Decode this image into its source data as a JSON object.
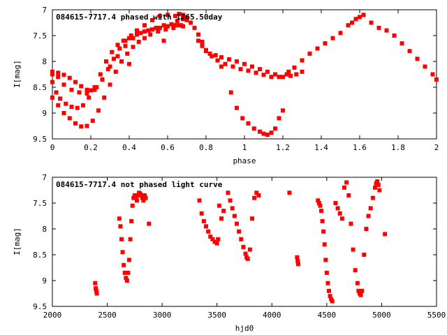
{
  "colors": {
    "points": "#ff0000",
    "frame": "#000000",
    "background": "#ffffff"
  },
  "chart_data": [
    {
      "type": "scatter",
      "title": "084615-7717.4 phased with 1265.50day",
      "xlabel": "phase",
      "ylabel": "I[mag]",
      "xlim": [
        0,
        2
      ],
      "ylim": [
        7,
        9.5
      ],
      "y_inverted": true,
      "legend": "none",
      "grid": false,
      "x_ticks": [
        "0",
        "0.2",
        "0.4",
        "0.6",
        "0.8",
        "1",
        "1.2",
        "1.4",
        "1.6",
        "1.8",
        "2"
      ],
      "y_ticks": [
        "7",
        "7.5",
        "8",
        "8.5",
        "9",
        "9.5"
      ],
      "series": [
        {
          "color": "#ff0000",
          "x": [
            0.0,
            0.03,
            0.06,
            0.09,
            0.12,
            0.15,
            0.18,
            0.2,
            0.23,
            0.26,
            0.29,
            0.32,
            0.35,
            0.38,
            0.41,
            0.44,
            0.48,
            0.52,
            0.56,
            0.6,
            0.64,
            0.66,
            0.68,
            0.7,
            0.72,
            0.74,
            0.76,
            0.78,
            0.8,
            0.83,
            0.86,
            0.9,
            0.94,
            0.98,
            1.02,
            1.06,
            1.1,
            1.14,
            1.18,
            1.22,
            1.26,
            1.3,
            1.34,
            1.38,
            1.42,
            1.46,
            1.5,
            1.54,
            1.58,
            1.62,
            1.66,
            1.7,
            1.74,
            1.78,
            1.82,
            1.86,
            1.9,
            1.94,
            1.98,
            2.0,
            0.0,
            0.03,
            0.06,
            0.1,
            0.14,
            0.18,
            0.22,
            0.26,
            0.3,
            0.34,
            0.38,
            0.42,
            0.46,
            0.5,
            0.54,
            0.58,
            0.62,
            0.65,
            0.68,
            0.7,
            0.0,
            0.02,
            0.04,
            0.07,
            0.1,
            0.13,
            0.16,
            0.19,
            0.22,
            0.25,
            0.28,
            0.31,
            0.34,
            0.37,
            0.4,
            0.44,
            0.48,
            0.52,
            0.56,
            0.6,
            0.64,
            0.67,
            0.0,
            0.03,
            0.06,
            0.09,
            0.12,
            0.15,
            0.18,
            0.21,
            0.24,
            0.27,
            0.3,
            0.33,
            0.36,
            0.39,
            0.42,
            0.45,
            0.48,
            0.51,
            0.55,
            0.59,
            0.63,
            0.66,
            0.68,
            0.76,
            0.78,
            0.8,
            0.82,
            0.85,
            0.88,
            0.92,
            0.96,
            1.0,
            1.04,
            1.08,
            1.12,
            1.16,
            1.2,
            1.24,
            1.27,
            1.3,
            0.93,
            0.96,
            0.99,
            1.02,
            1.05,
            1.08,
            1.1,
            1.12,
            1.14,
            1.16,
            1.18,
            1.2,
            1.56,
            1.58,
            1.6,
            1.62,
            0.4,
            0.88,
            0.58,
            1.23
          ],
          "y": [
            8.2,
            8.22,
            8.26,
            8.32,
            8.4,
            8.48,
            8.55,
            8.56,
            8.5,
            8.35,
            8.15,
            7.95,
            7.75,
            7.6,
            7.5,
            7.4,
            7.3,
            7.2,
            7.12,
            7.1,
            7.12,
            7.08,
            7.1,
            7.15,
            7.25,
            7.35,
            7.48,
            7.62,
            7.78,
            7.9,
            7.98,
            8.05,
            8.1,
            8.15,
            8.18,
            8.22,
            8.26,
            8.3,
            8.3,
            8.25,
            8.12,
            7.98,
            7.85,
            7.75,
            7.65,
            7.55,
            7.45,
            7.3,
            7.18,
            7.1,
            7.25,
            7.35,
            7.4,
            7.5,
            7.65,
            7.8,
            7.95,
            8.1,
            8.25,
            8.35,
            8.25,
            8.3,
            8.45,
            8.55,
            8.6,
            8.62,
            8.55,
            8.35,
            8.1,
            7.9,
            7.7,
            7.55,
            7.45,
            7.4,
            7.35,
            7.3,
            7.28,
            7.22,
            7.18,
            7.2,
            8.4,
            8.6,
            8.72,
            8.82,
            8.88,
            8.9,
            8.85,
            8.7,
            8.5,
            8.25,
            8.0,
            7.82,
            7.68,
            7.6,
            7.55,
            7.48,
            7.42,
            7.38,
            7.35,
            7.32,
            7.3,
            7.3,
            8.7,
            8.85,
            9.0,
            9.1,
            9.2,
            9.26,
            9.25,
            9.15,
            8.95,
            8.7,
            8.45,
            8.2,
            8.0,
            7.85,
            7.72,
            7.62,
            7.55,
            7.48,
            7.42,
            7.38,
            7.35,
            7.3,
            7.32,
            7.6,
            7.7,
            7.8,
            7.85,
            7.88,
            7.92,
            7.96,
            8.0,
            8.05,
            8.1,
            8.15,
            8.2,
            8.25,
            8.3,
            8.28,
            8.25,
            8.2,
            8.6,
            8.9,
            9.1,
            9.2,
            9.3,
            9.36,
            9.4,
            9.42,
            9.38,
            9.3,
            9.1,
            8.95,
            7.25,
            7.18,
            7.14,
            7.1,
            8.05,
            8.1,
            7.6,
            8.2
          ]
        }
      ]
    },
    {
      "type": "scatter",
      "title": "084615-7717.4 not phased light curve",
      "xlabel": "hjd0",
      "ylabel": "I[mag]",
      "xlim": [
        2000,
        5500
      ],
      "ylim": [
        7,
        9.5
      ],
      "y_inverted": true,
      "legend": "none",
      "grid": false,
      "x_ticks": [
        "2000",
        "2500",
        "3000",
        "3500",
        "4000",
        "4500",
        "5000",
        "5500"
      ],
      "y_ticks": [
        "7",
        "7.5",
        "8",
        "8.5",
        "9",
        "9.5"
      ],
      "series": [
        {
          "color": "#ff0000",
          "x": [
            2390,
            2395,
            2400,
            2405,
            2610,
            2620,
            2630,
            2640,
            2650,
            2660,
            2670,
            2680,
            2690,
            2700,
            2710,
            2720,
            2730,
            2740,
            2750,
            2760,
            2770,
            2780,
            2790,
            2800,
            2810,
            2820,
            2830,
            2840,
            2850,
            2880,
            3340,
            3360,
            3380,
            3400,
            3420,
            3440,
            3460,
            3480,
            3500,
            3510,
            3520,
            3540,
            3560,
            3600,
            3620,
            3640,
            3660,
            3680,
            3700,
            3720,
            3740,
            3760,
            3770,
            3780,
            3800,
            3820,
            3840,
            3860,
            3880,
            4160,
            4230,
            4235,
            4240,
            4420,
            4430,
            4440,
            4450,
            4460,
            4470,
            4480,
            4490,
            4500,
            4510,
            4520,
            4530,
            4540,
            4550,
            4580,
            4600,
            4620,
            4640,
            4660,
            4680,
            4700,
            4720,
            4740,
            4760,
            4780,
            4790,
            4800,
            4810,
            4820,
            4840,
            4860,
            4880,
            4900,
            4920,
            4940,
            4950,
            4960,
            4970,
            4980,
            5030
          ],
          "y": [
            9.05,
            9.15,
            9.2,
            9.25,
            7.8,
            7.95,
            8.2,
            8.45,
            8.7,
            8.85,
            8.95,
            9.0,
            8.85,
            8.6,
            8.2,
            7.85,
            7.55,
            7.4,
            7.35,
            7.4,
            7.45,
            7.35,
            7.3,
            7.32,
            7.35,
            7.4,
            7.45,
            7.35,
            7.4,
            7.9,
            7.45,
            7.7,
            7.85,
            7.95,
            8.05,
            8.15,
            8.2,
            8.25,
            8.28,
            8.2,
            7.55,
            7.8,
            7.65,
            7.3,
            7.45,
            7.6,
            7.75,
            7.9,
            8.05,
            8.2,
            8.35,
            8.48,
            8.55,
            8.58,
            8.4,
            7.8,
            7.4,
            7.3,
            7.35,
            7.3,
            8.55,
            8.62,
            8.68,
            7.45,
            7.5,
            7.55,
            7.65,
            7.85,
            8.05,
            8.3,
            8.6,
            8.85,
            9.05,
            9.2,
            9.3,
            9.36,
            9.4,
            7.5,
            7.6,
            7.7,
            7.8,
            7.2,
            7.1,
            7.35,
            7.9,
            8.4,
            8.8,
            9.05,
            9.2,
            9.25,
            9.28,
            9.2,
            8.5,
            8.0,
            7.75,
            7.6,
            7.4,
            7.2,
            7.12,
            7.08,
            7.15,
            7.25,
            8.1
          ]
        }
      ]
    }
  ]
}
